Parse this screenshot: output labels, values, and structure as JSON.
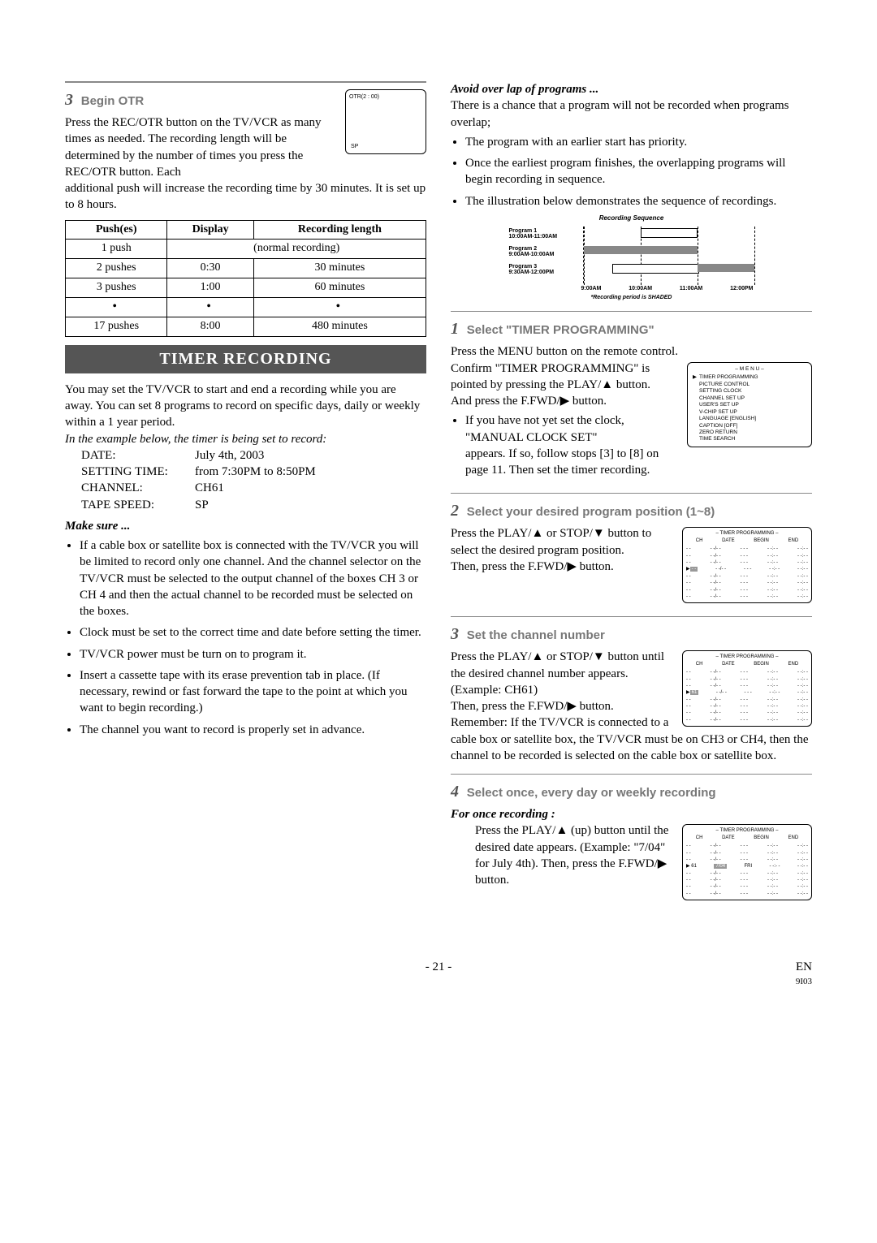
{
  "left": {
    "step3_num": "3",
    "step3_title": "Begin OTR",
    "otr_top": "OTR(2 : 00)",
    "otr_sp": "SP",
    "step3_body1": "Press the REC/OTR button on the TV/VCR as many times as needed. The recording length will be determined by the number of times you press the REC/OTR button. Each",
    "step3_body2": "additional push will increase the recording time by 30 minutes. It is set up to 8 hours.",
    "table": {
      "h1": "Push(es)",
      "h2": "Display",
      "h3": "Recording length",
      "r1c1": "1 push",
      "r1c23": "(normal recording)",
      "r2c1": "2 pushes",
      "r2c2": "0:30",
      "r2c3": "30 minutes",
      "r3c1": "3 pushes",
      "r3c2": "1:00",
      "r3c3": "60 minutes",
      "r4c1": "17 pushes",
      "r4c2": "8:00",
      "r4c3": "480 minutes"
    },
    "section_title": "TIMER RECORDING",
    "intro": "You may set the TV/VCR to start and end a recording while you are away. You can set 8 programs to record on specific days, daily or weekly within a 1 year period.",
    "example_intro": "In the example below, the timer is being set to record:",
    "kv": {
      "date_k": "DATE:",
      "date_v": "July 4th, 2003",
      "time_k": "SETTING TIME:",
      "time_v": "from 7:30PM to 8:50PM",
      "ch_k": "CHANNEL:",
      "ch_v": "CH61",
      "ts_k": "TAPE SPEED:",
      "ts_v": "SP"
    },
    "makesure_title": "Make sure ...",
    "ms1": "If a cable box or satellite box is connected with the TV/VCR you will be limited to record only one channel.  And the channel selector on the TV/VCR must be selected to the output channel of the boxes CH 3 or CH 4 and then the actual channel to be recorded must be selected on the boxes.",
    "ms2": "Clock must be set to the correct time and date before setting the timer.",
    "ms3": "TV/VCR power must be turn on to program it.",
    "ms4": "Insert a cassette tape with its erase prevention tab in place. (If necessary, rewind or fast forward the tape to the point at which you want to begin recording.)",
    "ms5": "The channel you want to record is properly set in advance."
  },
  "right": {
    "avoid_title": "Avoid over lap of programs ...",
    "avoid_body": "There is a chance that a program will not be recorded when programs overlap;",
    "av1": "The program with an earlier start has priority.",
    "av2": "Once the earliest program finishes, the overlapping programs will begin recording in sequence.",
    "av3": "The illustration below demonstrates the sequence of recordings.",
    "seq_title": "Recording Sequence",
    "seq_p1": "Program 1",
    "seq_p1t": "10:00AM-11:00AM",
    "seq_p2": "Program 2",
    "seq_p2t": "9:00AM-10:00AM",
    "seq_p3": "Program 3",
    "seq_p3t": "9:30AM-12:00PM",
    "seq_t1": "9:00AM",
    "seq_t2": "10:00AM",
    "seq_t3": "11:00AM",
    "seq_t4": "12:00PM",
    "seq_note": "*Recording period is SHADED",
    "s1_num": "1",
    "s1_title": "Select \"TIMER PROGRAMMING\"",
    "s1_body1": "Press the MENU button on the remote control.",
    "s1_body2": "Confirm \"TIMER PROGRAMMING\" is pointed by pressing the PLAY/▲ button.",
    "s1_body3": "And press the F.FWD/▶ button.",
    "s1_bullet": "If you have not yet set the clock, \"MANUAL CLOCK SET\"",
    "s1_bullet2": "appears. If so, follow stops [3] to [8] on page 11. Then set the timer recording.",
    "menu_title": "– M E N U –",
    "menu_items": [
      "TIMER PROGRAMMING",
      "PICTURE CONTROL",
      "SETTING CLOCK",
      "CHANNEL SET UP",
      "USER'S SET UP",
      "V-CHIP SET UP",
      "LANGUAGE  [ENGLISH]",
      "CAPTION  [OFF]",
      "ZERO RETURN",
      "TIME SEARCH"
    ],
    "s2_num": "2",
    "s2_title": "Select your desired program position (1~8)",
    "s2_body1": "Press the PLAY/▲ or STOP/▼ button to select the desired program position.",
    "s2_body2": "Then, press the F.FWD/▶ button.",
    "tp_title": "– TIMER PROGRAMMING –",
    "tp_ch": "CH",
    "tp_date": "DATE",
    "tp_begin": "BEGIN",
    "tp_end": "END",
    "s3_num": "3",
    "s3_title": "Set the channel number",
    "s3_body1": "Press the PLAY/▲ or STOP/▼ button until the desired channel number appears.",
    "s3_body2": "(Example: CH61)",
    "s3_body3": "Then, press the F.FWD/▶ button.",
    "s3_body4": "Remember: If the TV/VCR is connected to a cable box or satellite box, the TV/VCR must be on CH3 or CH4, then the channel to be recorded is selected on the cable box or satellite box.",
    "s4_num": "4",
    "s4_title": "Select once, every day or weekly recording",
    "s4_sub": "For once recording :",
    "s4_body1": "Press the PLAY/▲ (up) button until the desired date appears. (Example: \"7/04\" for July 4th). Then, press the F.FWD/▶ button."
  },
  "footer": {
    "page": "- 21 -",
    "en": "EN",
    "code": "9I03"
  }
}
